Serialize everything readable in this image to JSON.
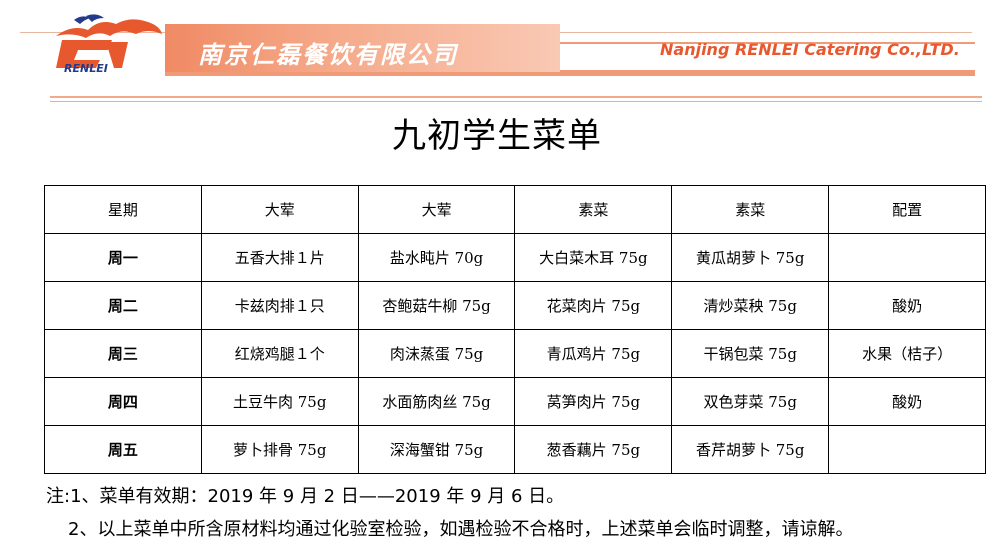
{
  "header": {
    "company_cn": "南京仁磊餐饮有限公司",
    "company_en": "Nanjing RENLEI Catering Co.,LTD.",
    "logo_text": "RENLEI",
    "colors": {
      "accent": "#f08a64",
      "logo_blue": "#243a8c",
      "logo_red": "#e8582e"
    }
  },
  "title": "九初学生菜单",
  "table": {
    "headers": [
      "星期",
      "大荤",
      "大荤",
      "素菜",
      "素菜",
      "配置"
    ],
    "rows": [
      [
        "周一",
        "五香大排１片",
        "盐水盹片 70g",
        "大白菜木耳 75g",
        "黄瓜胡萝卜 75g",
        ""
      ],
      [
        "周二",
        "卡兹肉排１只",
        "杏鲍菇牛柳 75g",
        "花菜肉片 75g",
        "清炒菜秧 75g",
        "酸奶"
      ],
      [
        "周三",
        "红烧鸡腿１个",
        "肉沫蒸蛋 75g",
        "青瓜鸡片 75g",
        "干锅包菜 75g",
        "水果（桔子）"
      ],
      [
        "周四",
        "土豆牛肉 75g",
        "水面筋肉丝 75g",
        "莴笋肉片 75g",
        "双色芽菜 75g",
        "酸奶"
      ],
      [
        "周五",
        "萝卜排骨 75g",
        "深海蟹钳 75g",
        "葱香藕片 75g",
        "香芹胡萝卜 75g",
        ""
      ]
    ]
  },
  "notes": [
    "注:1、菜单有效期：2019 年 9 月 2 日——2019 年 9 月 6 日。",
    "2、以上菜单中所含原材料均通过化验室检验，如遇检验不合格时，上述菜单会临时调整，请谅解。"
  ]
}
